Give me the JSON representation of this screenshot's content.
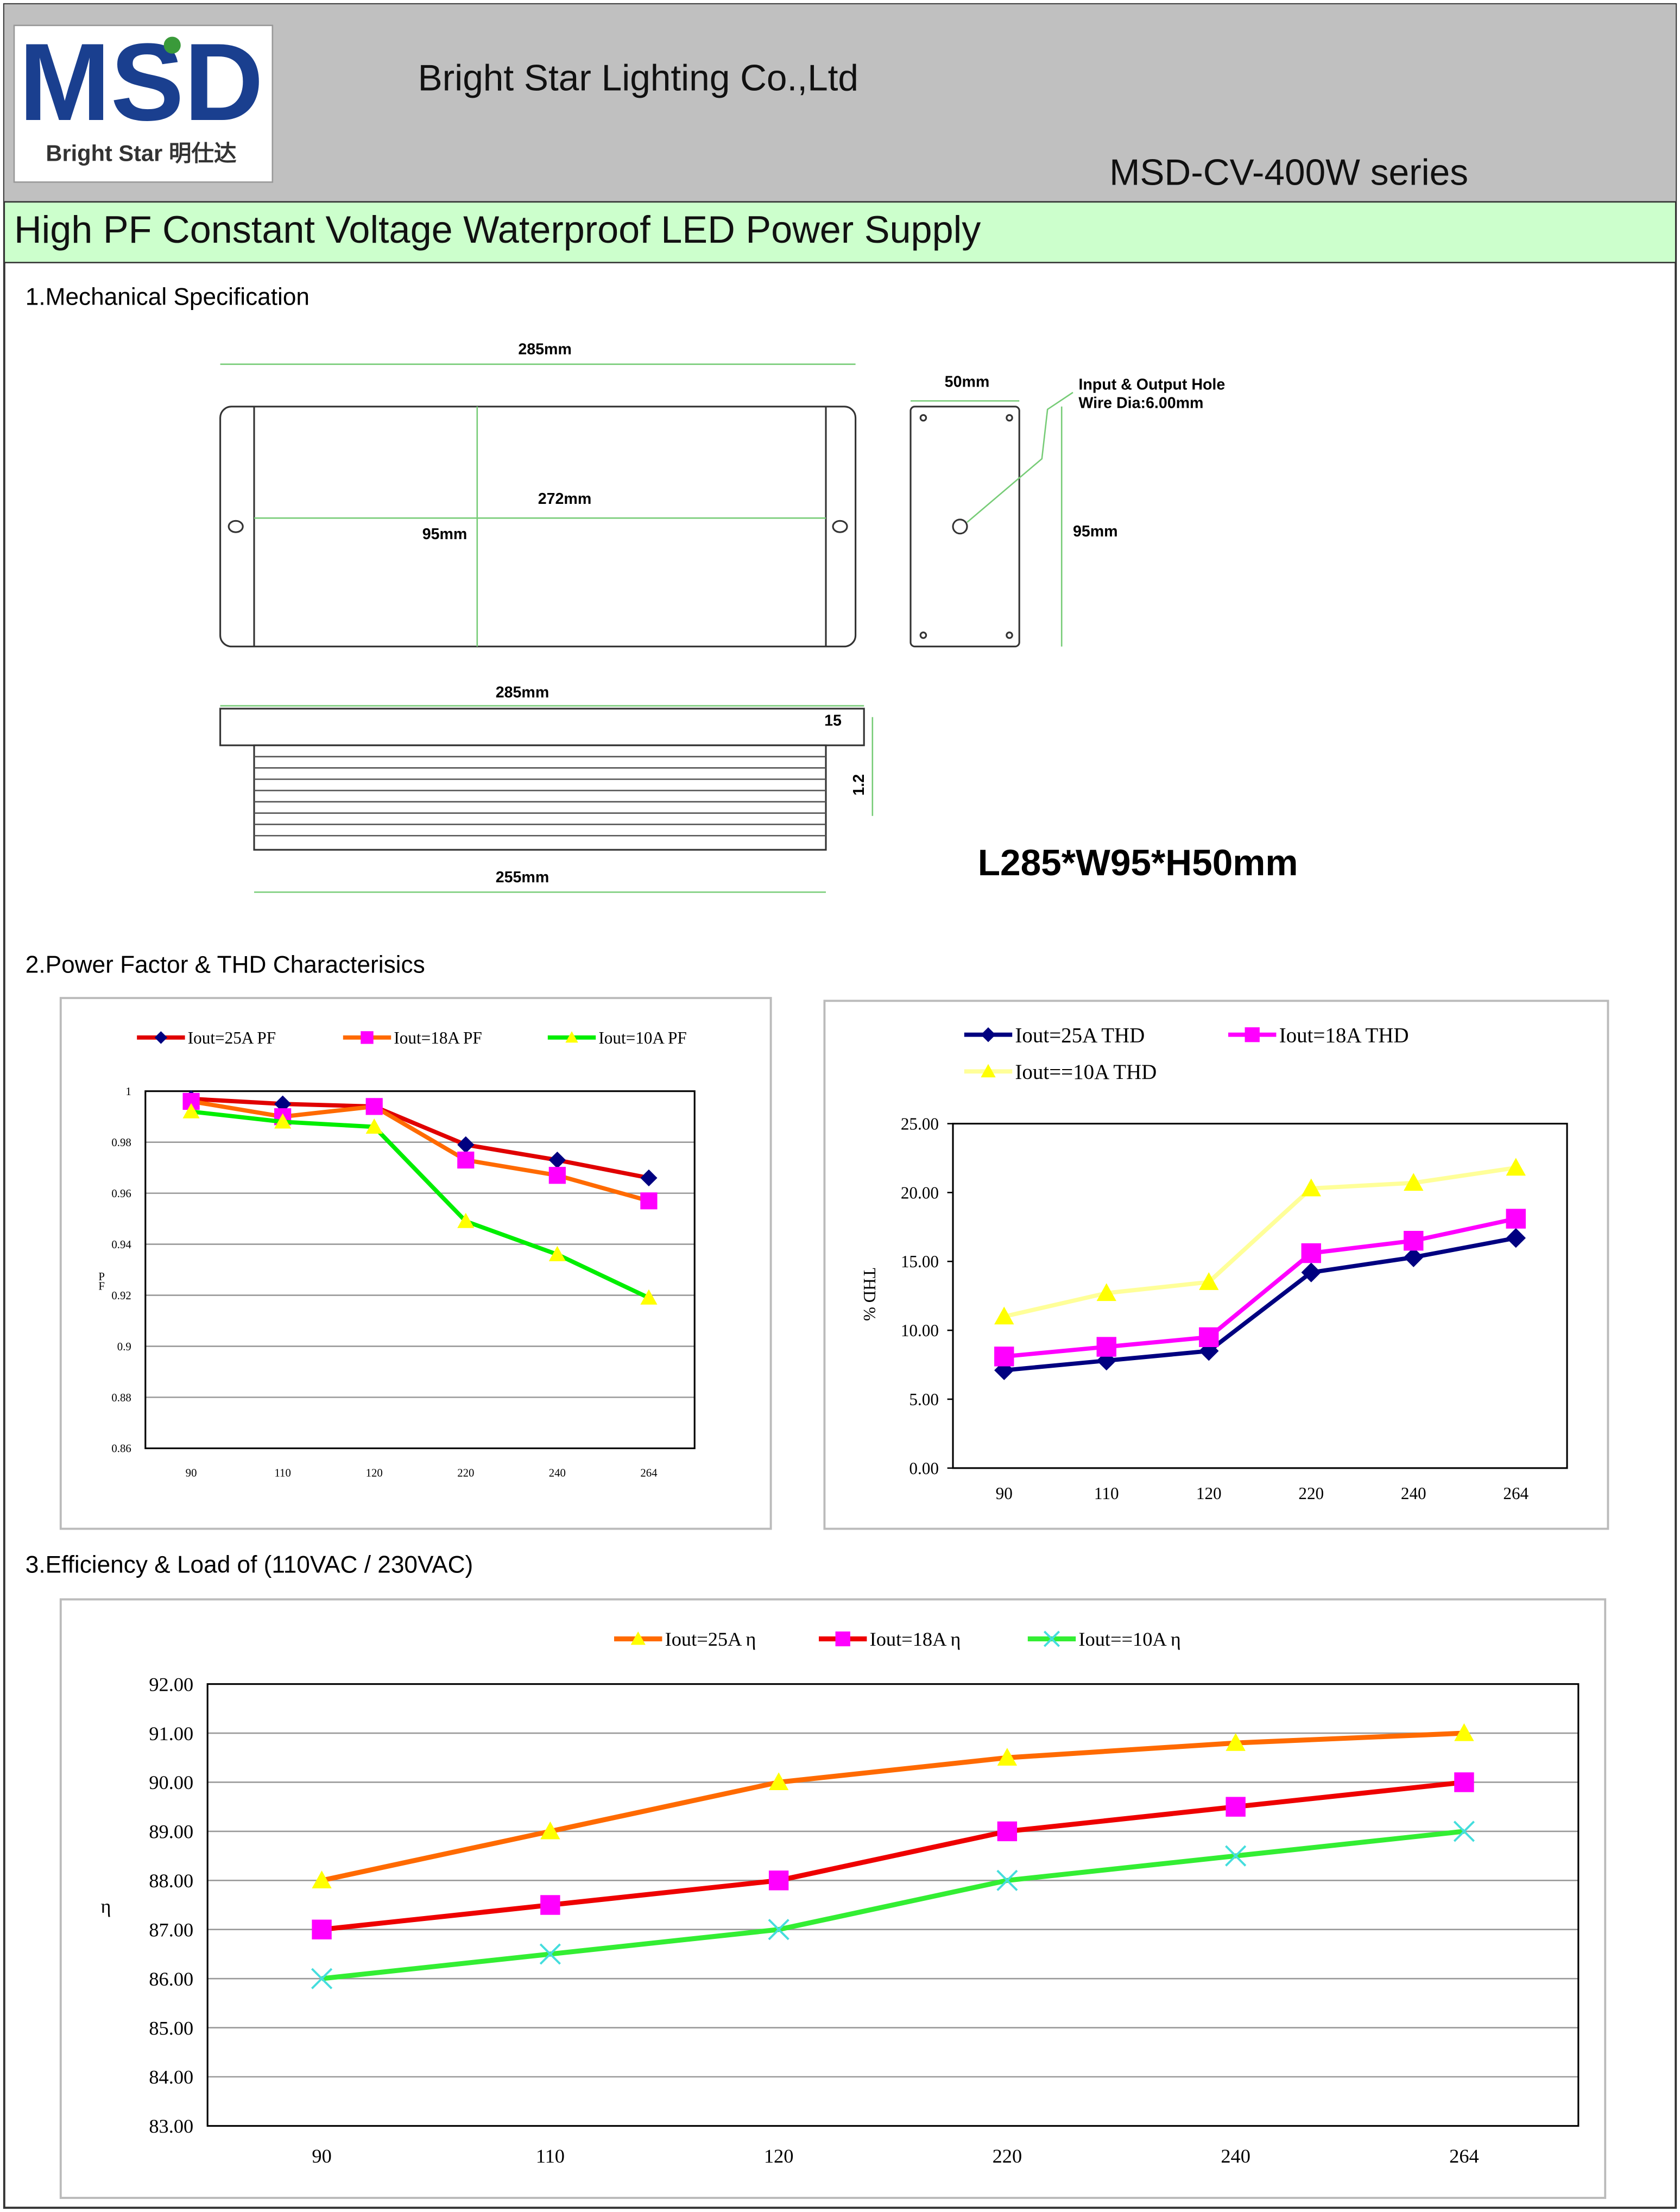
{
  "header": {
    "logo_text": "MSD",
    "logo_sub": "Bright Star 明仕达",
    "company": "Bright Star Lighting Co.,Ltd",
    "series": "MSD-CV-400W series"
  },
  "title": "High PF Constant Voltage Waterproof LED Power Supply",
  "sections": [
    "1.Mechanical Specification",
    "2.Power Factor & THD Characterisics",
    "3.Efficiency & Load of (110VAC / 230VAC)"
  ],
  "drawing": {
    "labels": [
      "285mm",
      "272mm",
      "95mm",
      "50mm",
      "Input & Output Hole",
      "Wire Dia:6.00mm",
      "95mm",
      "285mm",
      "15",
      "1.2",
      "255mm",
      "L285*W95*H50mm"
    ]
  },
  "charts": [
    {
      "type": "line",
      "ylabel": "PF",
      "categories": [
        "90",
        "110",
        "120",
        "220",
        "240",
        "264"
      ],
      "ylim": [
        0.86,
        1
      ],
      "yticks": [
        0.86,
        0.88,
        0.9,
        0.92,
        0.94,
        0.96,
        0.98,
        1
      ],
      "grid": true,
      "series": [
        {
          "name": "Iout=25A PF",
          "color": "#e00000",
          "marker": "diamond",
          "marker_color": "#000080",
          "values": [
            0.997,
            0.995,
            0.994,
            0.979,
            0.973,
            0.966
          ]
        },
        {
          "name": "Iout=18A PF",
          "color": "#ff6a00",
          "marker": "square",
          "marker_color": "#ff00ff",
          "values": [
            0.996,
            0.99,
            0.994,
            0.973,
            0.967,
            0.957
          ]
        },
        {
          "name": "Iout=10A PF",
          "color": "#00ee00",
          "marker": "triangle",
          "marker_color": "#ffff00",
          "values": [
            0.992,
            0.988,
            0.986,
            0.949,
            0.936,
            0.919
          ]
        }
      ]
    },
    {
      "type": "line",
      "ylabel": "THD %",
      "categories": [
        "90",
        "110",
        "120",
        "220",
        "240",
        "264"
      ],
      "ylim": [
        0,
        25
      ],
      "yticks": [
        {
          "value": 0,
          "label": "0.00"
        },
        {
          "value": 5,
          "label": "5.00"
        },
        {
          "value": 10,
          "label": "10.00"
        },
        {
          "value": 15,
          "label": "15.00"
        },
        {
          "value": 20,
          "label": "20.00"
        },
        {
          "value": 25,
          "label": "25.00"
        }
      ],
      "grid": false,
      "series": [
        {
          "name": "Iout=25A THD",
          "color": "#000080",
          "marker": "diamond",
          "marker_color": "#000080",
          "values": [
            7.1,
            7.8,
            8.5,
            14.2,
            15.3,
            16.7
          ]
        },
        {
          "name": "Iout=18A THD",
          "color": "#ff00ff",
          "marker": "square",
          "marker_color": "#ff00ff",
          "values": [
            8.1,
            8.8,
            9.5,
            15.6,
            16.5,
            18.1
          ]
        },
        {
          "name": "Iout==10A THD",
          "color": "#ffff99",
          "marker": "triangle",
          "marker_color": "#ffff00",
          "values": [
            11.0,
            12.7,
            13.5,
            20.3,
            20.7,
            21.8
          ]
        }
      ]
    },
    {
      "type": "line",
      "ylabel": "η",
      "categories": [
        "90",
        "110",
        "120",
        "220",
        "240",
        "264"
      ],
      "ylim": [
        83,
        92
      ],
      "yticks": [
        {
          "value": 83,
          "label": "83.00"
        },
        {
          "value": 84,
          "label": "84.00"
        },
        {
          "value": 85,
          "label": "85.00"
        },
        {
          "value": 86,
          "label": "86.00"
        },
        {
          "value": 87,
          "label": "87.00"
        },
        {
          "value": 88,
          "label": "88.00"
        },
        {
          "value": 89,
          "label": "89.00"
        },
        {
          "value": 90,
          "label": "90.00"
        },
        {
          "value": 91,
          "label": "91.00"
        },
        {
          "value": 92,
          "label": "92.00"
        }
      ],
      "grid": true,
      "series": [
        {
          "name": "Iout=25A η",
          "color": "#ff6a00",
          "marker": "triangle",
          "marker_color": "#ffff00",
          "values": [
            88,
            89,
            90,
            90.5,
            90.8,
            91
          ]
        },
        {
          "name": "Iout=18A η",
          "color": "#ee0000",
          "marker": "square",
          "marker_color": "#ff00ff",
          "values": [
            87,
            87.5,
            88,
            89,
            89.5,
            90
          ]
        },
        {
          "name": "Iout==10A η",
          "color": "#33ee33",
          "marker": "x",
          "marker_color": "#44dddd",
          "values": [
            86,
            86.5,
            87,
            88,
            88.5,
            89
          ]
        }
      ]
    }
  ]
}
